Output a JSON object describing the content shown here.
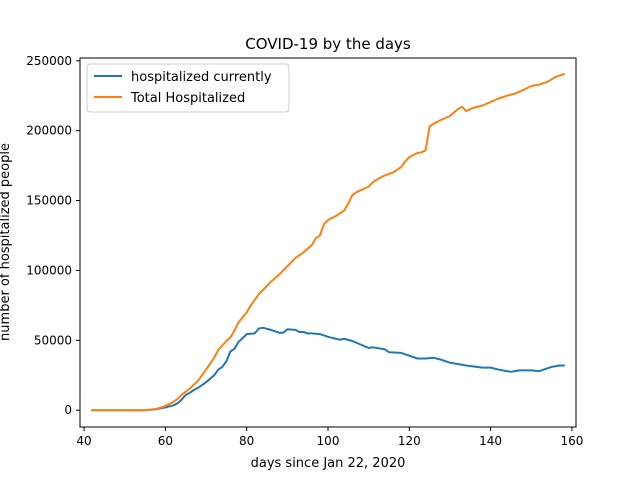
{
  "chart_data": {
    "type": "line",
    "title": "COVID-19 by the days",
    "xlabel": "days since Jan 22, 2020",
    "ylabel": "number of hospitalized people",
    "xlim": [
      39,
      161
    ],
    "ylim": [
      -12000,
      252000
    ],
    "xticks": [
      40,
      60,
      80,
      100,
      120,
      140,
      160
    ],
    "yticks": [
      0,
      50000,
      100000,
      150000,
      200000,
      250000
    ],
    "grid": false,
    "legend_position": "top-left",
    "series": [
      {
        "name": "hospitalized currently",
        "color": "#1f77b4",
        "points": [
          [
            42,
            0
          ],
          [
            55,
            0
          ],
          [
            57,
            500
          ],
          [
            58,
            900
          ],
          [
            60,
            2000
          ],
          [
            62,
            3500
          ],
          [
            63,
            5000
          ],
          [
            64,
            7500
          ],
          [
            65,
            11000
          ],
          [
            66,
            12500
          ],
          [
            67,
            14500
          ],
          [
            68,
            16000
          ],
          [
            70,
            20000
          ],
          [
            72,
            25000
          ],
          [
            73,
            29000
          ],
          [
            74,
            31000
          ],
          [
            75,
            35000
          ],
          [
            76,
            42000
          ],
          [
            77,
            44000
          ],
          [
            78,
            49000
          ],
          [
            79,
            51500
          ],
          [
            80,
            54500
          ],
          [
            82,
            55000
          ],
          [
            83,
            58500
          ],
          [
            84,
            59000
          ],
          [
            86,
            57500
          ],
          [
            88,
            55500
          ],
          [
            89,
            55500
          ],
          [
            90,
            58000
          ],
          [
            92,
            57500
          ],
          [
            93,
            56000
          ],
          [
            94,
            56000
          ],
          [
            95,
            55000
          ],
          [
            96,
            55000
          ],
          [
            98,
            54500
          ],
          [
            100,
            52500
          ],
          [
            102,
            51000
          ],
          [
            103,
            50500
          ],
          [
            104,
            51000
          ],
          [
            106,
            49500
          ],
          [
            108,
            47000
          ],
          [
            110,
            44500
          ],
          [
            111,
            45000
          ],
          [
            113,
            44000
          ],
          [
            114,
            43500
          ],
          [
            115,
            41500
          ],
          [
            118,
            41000
          ],
          [
            120,
            39000
          ],
          [
            122,
            37000
          ],
          [
            124,
            37000
          ],
          [
            126,
            37500
          ],
          [
            128,
            36000
          ],
          [
            130,
            34000
          ],
          [
            134,
            32000
          ],
          [
            138,
            30500
          ],
          [
            140,
            30500
          ],
          [
            142,
            29000
          ],
          [
            144,
            28000
          ],
          [
            145,
            27500
          ],
          [
            146,
            28000
          ],
          [
            147,
            28500
          ],
          [
            150,
            28500
          ],
          [
            152,
            28000
          ],
          [
            154,
            30000
          ],
          [
            155,
            31000
          ],
          [
            157,
            32000
          ],
          [
            158,
            32000
          ]
        ]
      },
      {
        "name": "Total Hospitalized",
        "color": "#ff7f0e",
        "points": [
          [
            42,
            0
          ],
          [
            55,
            0
          ],
          [
            58,
            1000
          ],
          [
            60,
            3000
          ],
          [
            62,
            6000
          ],
          [
            63,
            8000
          ],
          [
            64,
            11000
          ],
          [
            66,
            15500
          ],
          [
            68,
            21000
          ],
          [
            70,
            29000
          ],
          [
            72,
            37500
          ],
          [
            73,
            43000
          ],
          [
            75,
            49500
          ],
          [
            76,
            52000
          ],
          [
            77,
            57000
          ],
          [
            78,
            63000
          ],
          [
            80,
            70000
          ],
          [
            81,
            75000
          ],
          [
            82,
            79000
          ],
          [
            83,
            83000
          ],
          [
            84,
            86000
          ],
          [
            86,
            92000
          ],
          [
            88,
            97000
          ],
          [
            90,
            103000
          ],
          [
            92,
            109000
          ],
          [
            94,
            113000
          ],
          [
            96,
            118000
          ],
          [
            97,
            123000
          ],
          [
            98,
            125000
          ],
          [
            99,
            133000
          ],
          [
            100,
            136000
          ],
          [
            102,
            139000
          ],
          [
            104,
            143000
          ],
          [
            105,
            148000
          ],
          [
            106,
            154000
          ],
          [
            107,
            156000
          ],
          [
            110,
            160000
          ],
          [
            111,
            163000
          ],
          [
            112,
            165000
          ],
          [
            114,
            168000
          ],
          [
            116,
            170000
          ],
          [
            118,
            174000
          ],
          [
            119,
            178000
          ],
          [
            120,
            181000
          ],
          [
            122,
            184000
          ],
          [
            123,
            184500
          ],
          [
            124,
            186000
          ],
          [
            125,
            203000
          ],
          [
            126,
            205000
          ],
          [
            128,
            208000
          ],
          [
            130,
            210500
          ],
          [
            131,
            213000
          ],
          [
            132,
            215500
          ],
          [
            133,
            217000
          ],
          [
            134,
            214000
          ],
          [
            135,
            215500
          ],
          [
            136,
            216500
          ],
          [
            138,
            218000
          ],
          [
            140,
            220500
          ],
          [
            142,
            223000
          ],
          [
            144,
            225000
          ],
          [
            146,
            226500
          ],
          [
            148,
            229000
          ],
          [
            150,
            232000
          ],
          [
            152,
            233000
          ],
          [
            154,
            235000
          ],
          [
            156,
            238500
          ],
          [
            158,
            240500
          ]
        ]
      }
    ]
  }
}
